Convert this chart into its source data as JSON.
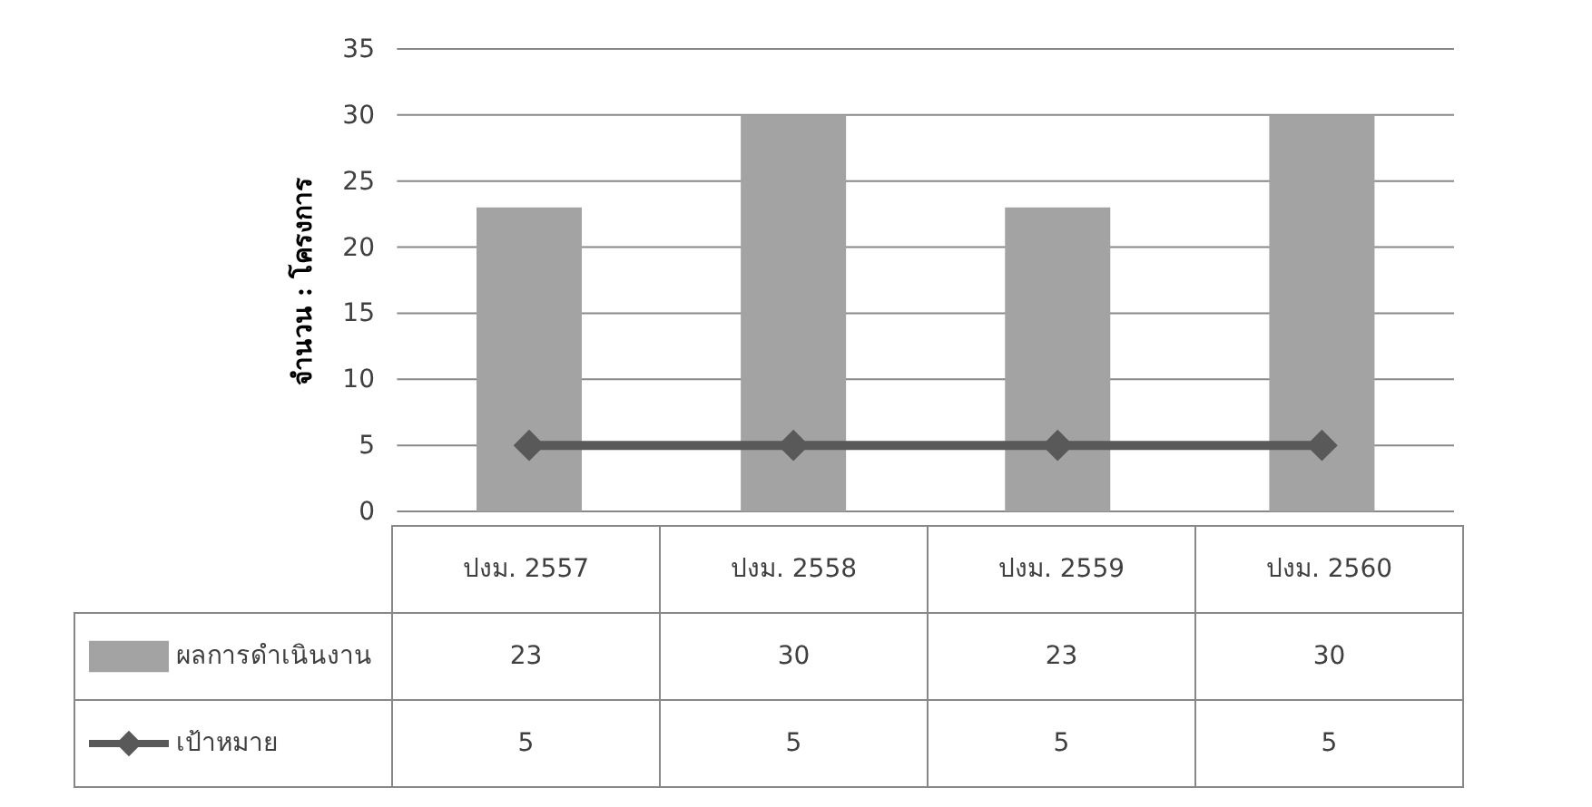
{
  "chart_data": {
    "type": "bar",
    "ylabel": "จำนวน : โครงการ",
    "categories": [
      "ปงม. 2557",
      "ปงม. 2558",
      "ปงม. 2559",
      "ปงม. 2560"
    ],
    "series": [
      {
        "name": "ผลการดำเนินงาน",
        "color": "#a3a3a3",
        "values": [
          23,
          30,
          23,
          30
        ],
        "value_labels": [
          "23",
          "30",
          "23",
          "30"
        ]
      },
      {
        "name": "เป้าหมาย",
        "type": "line",
        "color": "#595959",
        "values": [
          5,
          5,
          5,
          5
        ],
        "value_labels": [
          "5",
          "5",
          "5",
          "5"
        ]
      }
    ],
    "ylim": [
      0,
      35
    ],
    "yticks": [
      0,
      5,
      10,
      15,
      20,
      25,
      30,
      35
    ],
    "grid": "y",
    "legend": "bottom",
    "marker": "diamond"
  }
}
